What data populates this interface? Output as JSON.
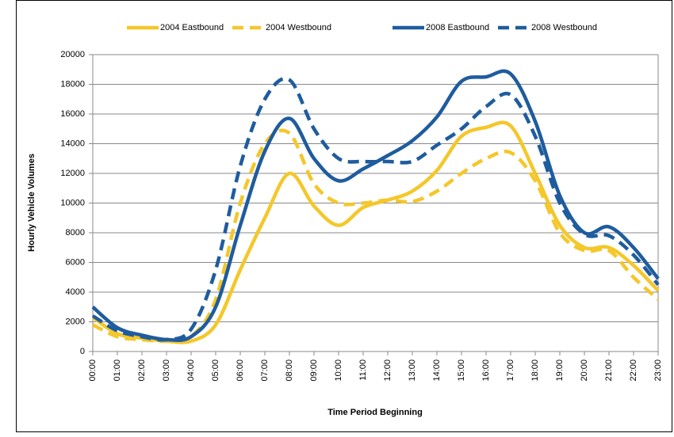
{
  "chart_data": {
    "type": "line",
    "xlabel": "Time Period Beginning",
    "ylabel": "Hourly Vehicle Volumes",
    "categories": [
      "00:00",
      "01:00",
      "02:00",
      "03:00",
      "04:00",
      "05:00",
      "06:00",
      "07:00",
      "08:00",
      "09:00",
      "10:00",
      "11:00",
      "12:00",
      "13:00",
      "14:00",
      "15:00",
      "16:00",
      "17:00",
      "18:00",
      "19:00",
      "20:00",
      "21:00",
      "22:00",
      "23:00"
    ],
    "series": [
      {
        "name": "2004 Eastbound",
        "color": "#f4c72a",
        "dash": false,
        "values": [
          2300,
          1200,
          900,
          700,
          700,
          1800,
          5500,
          9000,
          12000,
          9800,
          8500,
          9700,
          10200,
          10800,
          12200,
          14500,
          15100,
          15200,
          12000,
          8500,
          7000,
          7000,
          5800,
          4100
        ]
      },
      {
        "name": "2004 Westbound",
        "color": "#f4c72a",
        "dash": true,
        "values": [
          1800,
          1000,
          800,
          700,
          1000,
          3500,
          10000,
          14000,
          14700,
          11300,
          10000,
          10000,
          10200,
          10100,
          10800,
          12000,
          13000,
          13400,
          11500,
          8000,
          6800,
          6800,
          5000,
          3500
        ]
      },
      {
        "name": "2008 Eastbound",
        "color": "#1f5c9e",
        "dash": false,
        "values": [
          3000,
          1600,
          1100,
          800,
          1000,
          3000,
          8500,
          13500,
          15700,
          13000,
          11500,
          12300,
          13200,
          14200,
          15800,
          18200,
          18500,
          18700,
          15500,
          10500,
          8000,
          8400,
          7000,
          4900
        ]
      },
      {
        "name": "2008 Westbound",
        "color": "#1f5c9e",
        "dash": true,
        "values": [
          2400,
          1400,
          1000,
          800,
          1500,
          5500,
          12500,
          17000,
          18300,
          15000,
          13000,
          12800,
          12800,
          12800,
          13900,
          15000,
          16500,
          17300,
          14500,
          10000,
          7900,
          7800,
          6500,
          4500
        ]
      }
    ],
    "ylim": [
      0,
      20000
    ],
    "yticks": [
      0,
      2000,
      4000,
      6000,
      8000,
      10000,
      12000,
      14000,
      16000,
      18000,
      20000
    ],
    "grid": true,
    "legend": "top"
  }
}
